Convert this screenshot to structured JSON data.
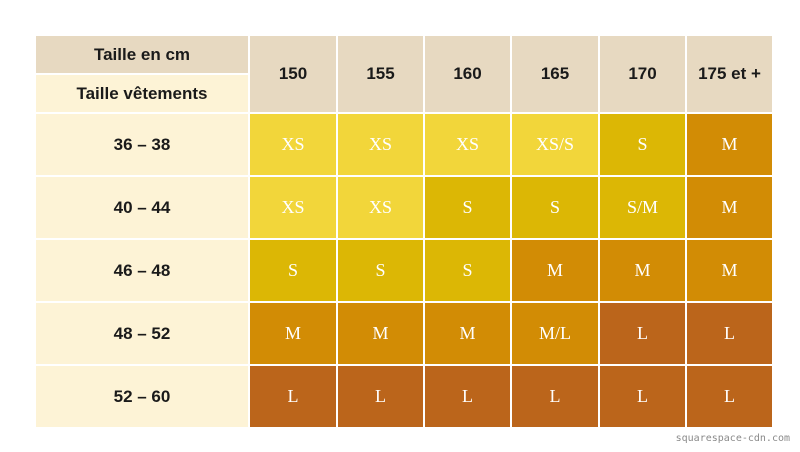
{
  "table": {
    "corner_top": "Taille en cm",
    "corner_bottom": "Taille vêtements",
    "heights": [
      "150",
      "155",
      "160",
      "165",
      "170",
      "175 et +"
    ],
    "rows": [
      {
        "label": "36 – 38",
        "sizes": [
          "XS",
          "XS",
          "XS",
          "XS/S",
          "S",
          "M"
        ]
      },
      {
        "label": "40 – 44",
        "sizes": [
          "XS",
          "XS",
          "S",
          "S",
          "S/M",
          "M"
        ]
      },
      {
        "label": "46 – 48",
        "sizes": [
          "S",
          "S",
          "S",
          "M",
          "M",
          "M"
        ]
      },
      {
        "label": "48 – 52",
        "sizes": [
          "M",
          "M",
          "M",
          "M/L",
          "L",
          "L"
        ]
      },
      {
        "label": "52 – 60",
        "sizes": [
          "L",
          "L",
          "L",
          "L",
          "L",
          "L"
        ]
      }
    ]
  },
  "size_colors": {
    "XS": "#f2d63a",
    "XS/S": "#f2d63a",
    "S": "#dcb705",
    "S/M": "#dcb705",
    "M": "#d28c05",
    "M/L": "#d28c05",
    "L": "#bb651b"
  },
  "watermark": "squarespace-cdn.com"
}
